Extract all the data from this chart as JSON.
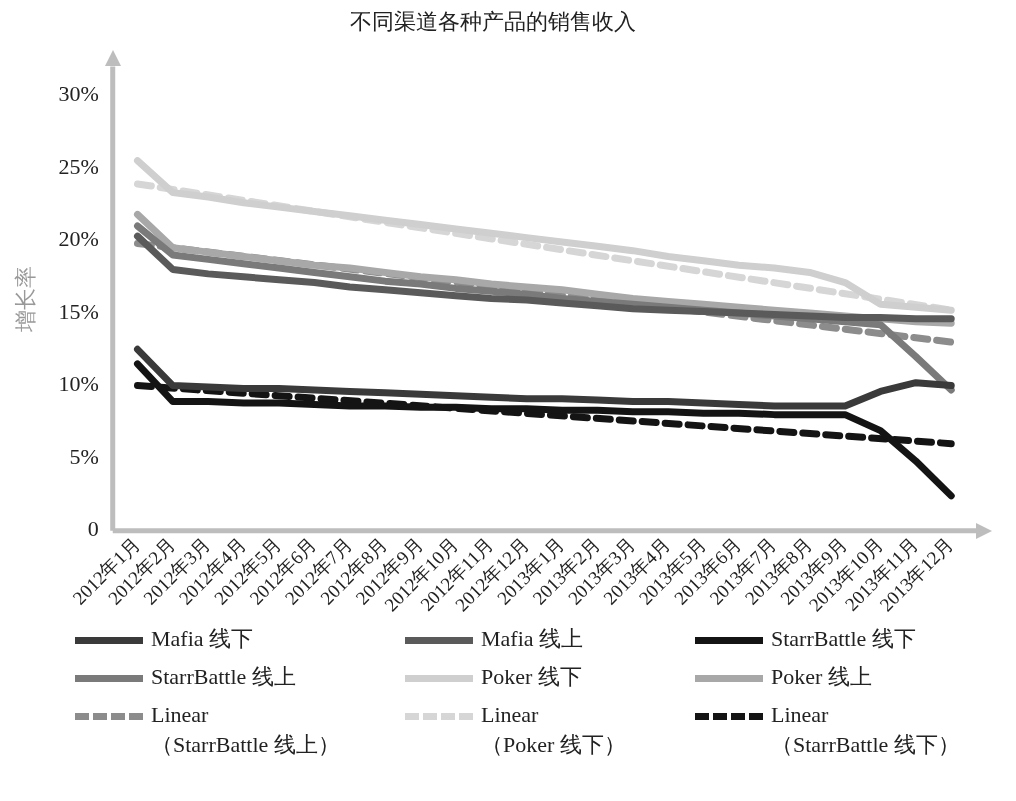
{
  "chart_data": {
    "type": "line",
    "title": "不同渠道各种产品的销售收入",
    "ylabel": "增长率",
    "categories": [
      "2012年1月",
      "2012年2月",
      "2012年3月",
      "2012年4月",
      "2012年5月",
      "2012年6月",
      "2012年7月",
      "2012年8月",
      "2012年9月",
      "2012年10月",
      "2012年11月",
      "2012年12月",
      "2013年1月",
      "2013年2月",
      "2013年3月",
      "2013年4月",
      "2013年5月",
      "2013年6月",
      "2013年7月",
      "2013年8月",
      "2013年9月",
      "2013年10月",
      "2013年11月",
      "2013年12月"
    ],
    "ylim": [
      0,
      32
    ],
    "yticks": [
      {
        "value": 0,
        "label": "0"
      },
      {
        "value": 5,
        "label": "5%"
      },
      {
        "value": 10,
        "label": "10%"
      },
      {
        "value": 15,
        "label": "15%"
      },
      {
        "value": 20,
        "label": "20%"
      },
      {
        "value": 25,
        "label": "25%"
      },
      {
        "value": 30,
        "label": "30%"
      }
    ],
    "grid": false,
    "legend": "bottom",
    "marker": "none",
    "line_style": "solid",
    "series": [
      {
        "name": "Mafia 线下",
        "color": "#3a3a3a",
        "values": [
          12.5,
          10.0,
          9.9,
          9.8,
          9.8,
          9.7,
          9.6,
          9.5,
          9.4,
          9.3,
          9.2,
          9.1,
          9.1,
          9.0,
          8.9,
          8.9,
          8.8,
          8.7,
          8.6,
          8.6,
          8.6,
          9.6,
          10.2,
          10.0
        ]
      },
      {
        "name": "Mafia 线上",
        "color": "#5a5a5a",
        "values": [
          20.3,
          18.0,
          17.7,
          17.5,
          17.3,
          17.1,
          16.8,
          16.6,
          16.4,
          16.2,
          16.0,
          15.9,
          15.7,
          15.5,
          15.3,
          15.2,
          15.1,
          15.0,
          14.9,
          14.8,
          14.7,
          14.7,
          14.6,
          14.6
        ]
      },
      {
        "name": "StarrBattle 线下",
        "color": "#141414",
        "values": [
          11.5,
          8.9,
          8.9,
          8.8,
          8.8,
          8.7,
          8.6,
          8.6,
          8.5,
          8.5,
          8.4,
          8.4,
          8.3,
          8.3,
          8.2,
          8.2,
          8.1,
          8.1,
          8.0,
          8.0,
          8.0,
          6.9,
          4.8,
          2.4
        ]
      },
      {
        "name": "StarrBattle 线上",
        "color": "#7a7a7a",
        "values": [
          21.0,
          19.0,
          18.7,
          18.4,
          18.1,
          17.8,
          17.5,
          17.2,
          17.0,
          16.7,
          16.5,
          16.3,
          16.0,
          15.8,
          15.6,
          15.4,
          15.2,
          15.0,
          14.8,
          14.6,
          14.4,
          14.2,
          12.0,
          9.7
        ]
      },
      {
        "name": "Poker 线下",
        "color": "#cfcfcf",
        "values": [
          25.5,
          23.3,
          23.0,
          22.6,
          22.3,
          22.0,
          21.7,
          21.4,
          21.1,
          20.8,
          20.5,
          20.2,
          19.9,
          19.6,
          19.3,
          18.9,
          18.6,
          18.3,
          18.1,
          17.8,
          17.1,
          15.6,
          15.4,
          15.2
        ]
      },
      {
        "name": "Poker 线上",
        "color": "#a8a8a8",
        "values": [
          21.8,
          19.5,
          19.2,
          18.9,
          18.6,
          18.3,
          18.1,
          17.8,
          17.5,
          17.3,
          17.0,
          16.8,
          16.6,
          16.3,
          16.0,
          15.8,
          15.6,
          15.4,
          15.2,
          15.0,
          14.8,
          14.6,
          14.4,
          14.3
        ]
      },
      {
        "name": "Linear\n（StarrBattle 线上）",
        "color": "#8c8c8c",
        "line_style": "dashed",
        "x": [
          "2012年1月",
          "2013年12月"
        ],
        "values": [
          19.8,
          13.0
        ]
      },
      {
        "name": "Linear\n（Poker 线下）",
        "color": "#d6d6d6",
        "line_style": "dashed",
        "x": [
          "2012年1月",
          "2013年12月"
        ],
        "values": [
          23.9,
          15.2
        ]
      },
      {
        "name": "Linear\n（StarrBattle 线下）",
        "color": "#141414",
        "line_style": "dashed",
        "x": [
          "2012年1月",
          "2013年12月"
        ],
        "values": [
          10.0,
          6.0
        ]
      }
    ]
  }
}
